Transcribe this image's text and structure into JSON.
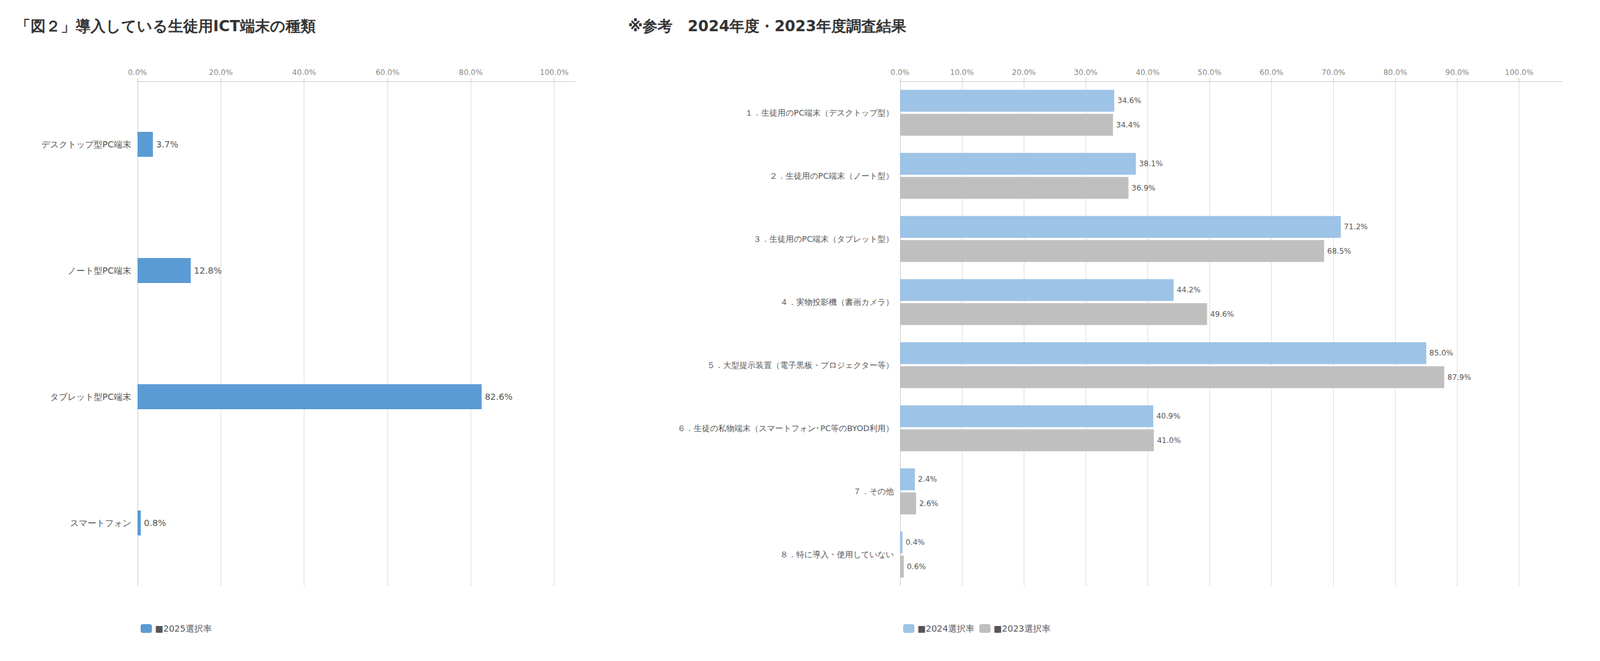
{
  "chart_data": [
    {
      "type": "bar",
      "orientation": "horizontal",
      "title": "「図２」導入している生徒用ICT端末の種類",
      "categories": [
        "デスクトップ型PC端末",
        "ノート型PC端末",
        "タブレット型PC端末",
        "スマートフォン"
      ],
      "series": [
        {
          "name": "■2025選択率",
          "color": "#5B9BD5",
          "values": [
            3.7,
            12.8,
            82.6,
            0.8
          ],
          "value_labels": [
            "3.7%",
            "12.8%",
            "82.6%",
            "0.8%"
          ]
        }
      ],
      "xlim": [
        0,
        105
      ],
      "xticks": [
        {
          "value": 0,
          "label": "0.0%"
        },
        {
          "value": 20,
          "label": "20.0%"
        },
        {
          "value": 40,
          "label": "40.0%"
        },
        {
          "value": 60,
          "label": "60.0%"
        },
        {
          "value": 80,
          "label": "80.0%"
        },
        {
          "value": 100,
          "label": "100.0%"
        }
      ],
      "grid": true,
      "legend": "lower left",
      "data_labels": true
    },
    {
      "type": "bar",
      "orientation": "horizontal",
      "title": "※参考　2024年度・2023年度調査結果",
      "categories": [
        "１．生徒用のPC端末（デスクトップ型）",
        "２．生徒用のPC端末（ノート型）",
        "３．生徒用のPC端末（タブレット型）",
        "４．実物投影機（書画カメラ）",
        "５．大型提示装置（電子黒板・プロジェクター等）",
        "６．生徒の私物端末（スマートフォン･PC等のBYOD利用）",
        "７．その他",
        "８．特に導入・使用していない"
      ],
      "series": [
        {
          "name": "■2024選択率",
          "color": "#9DC3E6",
          "values": [
            34.6,
            38.1,
            71.2,
            44.2,
            85.0,
            40.9,
            2.4,
            0.4
          ],
          "value_labels": [
            "34.6%",
            "38.1%",
            "71.2%",
            "44.2%",
            "85.0%",
            "40.9%",
            "2.4%",
            "0.4%"
          ]
        },
        {
          "name": "■2023選択率",
          "color": "#BFBFBF",
          "values": [
            34.4,
            36.9,
            68.5,
            49.6,
            87.9,
            41.0,
            2.6,
            0.6
          ],
          "value_labels": [
            "34.4%",
            "36.9%",
            "68.5%",
            "49.6%",
            "87.9%",
            "41.0%",
            "2.6%",
            "0.6%"
          ]
        }
      ],
      "xlim": [
        0,
        107
      ],
      "xticks": [
        {
          "value": 0,
          "label": "0.0%"
        },
        {
          "value": 10,
          "label": "10.0%"
        },
        {
          "value": 20,
          "label": "20.0%"
        },
        {
          "value": 30,
          "label": "30.0%"
        },
        {
          "value": 40,
          "label": "40.0%"
        },
        {
          "value": 50,
          "label": "50.0%"
        },
        {
          "value": 60,
          "label": "60.0%"
        },
        {
          "value": 70,
          "label": "70.0%"
        },
        {
          "value": 80,
          "label": "80.0%"
        },
        {
          "value": 90,
          "label": "90.0%"
        },
        {
          "value": 100,
          "label": "100.0%"
        }
      ],
      "grid": true,
      "legend": "lower left",
      "data_labels": true
    }
  ]
}
